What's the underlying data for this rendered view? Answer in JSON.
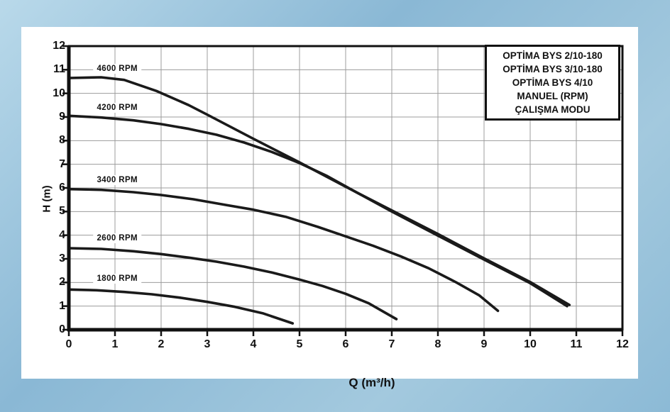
{
  "colors": {
    "frame_blue": "#8fbcd8",
    "panel_bg": "#ffffff",
    "curve": "#1a1a1a",
    "grid": "#9c9c9c",
    "axis": "#111111",
    "text": "#111111"
  },
  "axes": {
    "x_label": "Q (m³/h)",
    "y_label": "H (m)",
    "x_ticks": [
      0,
      1,
      2,
      3,
      4,
      5,
      6,
      7,
      8,
      9,
      10,
      11,
      12
    ],
    "y_ticks": [
      0,
      1,
      2,
      3,
      4,
      5,
      6,
      7,
      8,
      9,
      10,
      11,
      12
    ]
  },
  "chart_data": {
    "type": "line",
    "title": "",
    "xlabel": "Q (m³/h)",
    "ylabel": "H (m)",
    "xlim": [
      0,
      12
    ],
    "ylim": [
      0,
      12
    ],
    "grid": true,
    "legend_position": "top-right",
    "legend": {
      "lines": [
        "OPTİMA BYS 2/10-180",
        "OPTİMA BYS 3/10-180",
        "OPTİMA BYS 4/10",
        "MANUEL (RPM)",
        "ÇALIŞMA MODU"
      ]
    },
    "series": [
      {
        "name": "4600 RPM",
        "label_pos": {
          "q": 1.05,
          "h": 11.04
        },
        "points": [
          [
            0,
            10.65
          ],
          [
            0.7,
            10.68
          ],
          [
            1.2,
            10.57
          ],
          [
            1.9,
            10.1
          ],
          [
            2.6,
            9.5
          ],
          [
            3,
            9.1
          ],
          [
            4,
            8.08
          ],
          [
            5,
            7.08
          ],
          [
            6,
            6.05
          ],
          [
            7,
            5.05
          ],
          [
            8,
            4.05
          ],
          [
            9,
            3.02
          ],
          [
            10,
            2.02
          ],
          [
            10.85,
            1.05
          ]
        ]
      },
      {
        "name": "4200 RPM",
        "label_pos": {
          "q": 1.05,
          "h": 9.39
        },
        "points": [
          [
            0,
            9.05
          ],
          [
            0.7,
            8.98
          ],
          [
            1.4,
            8.86
          ],
          [
            2,
            8.7
          ],
          [
            2.6,
            8.5
          ],
          [
            3.2,
            8.25
          ],
          [
            3.8,
            7.92
          ],
          [
            4.4,
            7.52
          ],
          [
            5,
            7.05
          ],
          [
            5.6,
            6.5
          ],
          [
            6.2,
            5.85
          ],
          [
            7,
            5.0
          ],
          [
            8,
            3.98
          ],
          [
            9,
            2.97
          ],
          [
            10,
            1.97
          ],
          [
            10.8,
            1.0
          ]
        ]
      },
      {
        "name": "3400 RPM",
        "label_pos": {
          "q": 1.05,
          "h": 6.33
        },
        "points": [
          [
            0,
            5.95
          ],
          [
            0.7,
            5.92
          ],
          [
            1.4,
            5.82
          ],
          [
            2,
            5.7
          ],
          [
            2.7,
            5.52
          ],
          [
            3.4,
            5.28
          ],
          [
            4,
            5.08
          ],
          [
            4.7,
            4.78
          ],
          [
            5.4,
            4.35
          ],
          [
            6,
            3.95
          ],
          [
            6.6,
            3.55
          ],
          [
            7.2,
            3.1
          ],
          [
            7.8,
            2.6
          ],
          [
            8.4,
            2.0
          ],
          [
            8.9,
            1.45
          ],
          [
            9.3,
            0.8
          ]
        ]
      },
      {
        "name": "2600 RPM",
        "label_pos": {
          "q": 1.05,
          "h": 3.87
        },
        "points": [
          [
            0,
            3.45
          ],
          [
            0.7,
            3.42
          ],
          [
            1.4,
            3.32
          ],
          [
            2,
            3.2
          ],
          [
            2.6,
            3.05
          ],
          [
            3.2,
            2.88
          ],
          [
            3.8,
            2.67
          ],
          [
            4.4,
            2.42
          ],
          [
            5,
            2.12
          ],
          [
            5.5,
            1.85
          ],
          [
            6,
            1.52
          ],
          [
            6.5,
            1.12
          ],
          [
            7.1,
            0.45
          ]
        ]
      },
      {
        "name": "1800 RPM",
        "label_pos": {
          "q": 1.05,
          "h": 2.16
        },
        "points": [
          [
            0,
            1.7
          ],
          [
            0.6,
            1.67
          ],
          [
            1.2,
            1.6
          ],
          [
            1.8,
            1.5
          ],
          [
            2.4,
            1.36
          ],
          [
            3,
            1.18
          ],
          [
            3.6,
            0.97
          ],
          [
            4.2,
            0.7
          ],
          [
            4.85,
            0.27
          ]
        ]
      }
    ]
  }
}
